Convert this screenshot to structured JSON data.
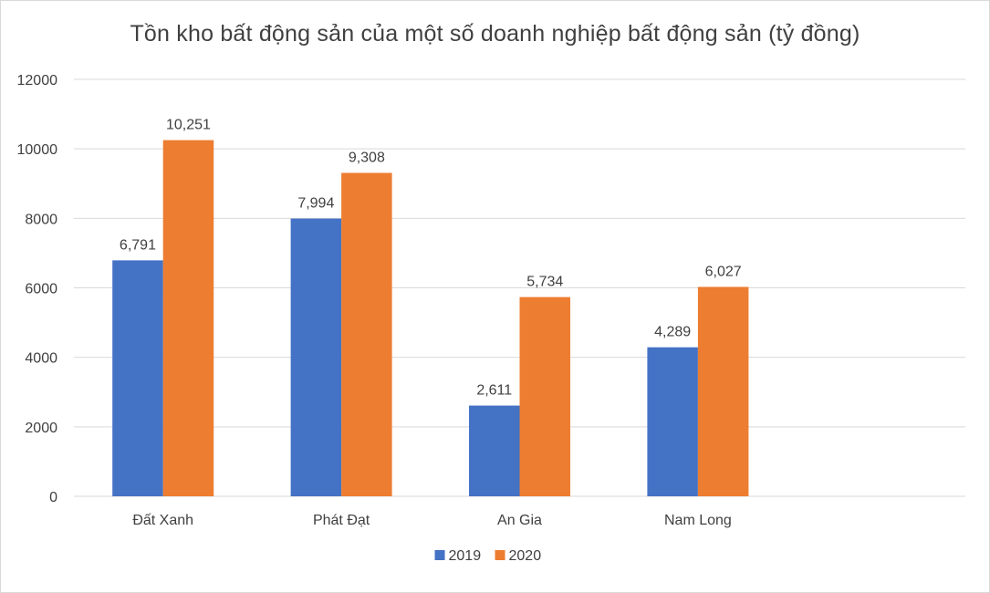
{
  "chart_data": {
    "type": "bar",
    "title": "Tồn kho bất động sản của một số doanh nghiệp bất động sản (tỷ đồng)",
    "categories": [
      "Đất Xanh",
      "Phát Đạt",
      "An Gia",
      "Nam Long"
    ],
    "series": [
      {
        "name": "2019",
        "values": [
          6791,
          7994,
          2611,
          4289
        ],
        "labels": [
          "6,791",
          "7,994",
          "2,611",
          "4,289"
        ],
        "color": "#4472c4"
      },
      {
        "name": "2020",
        "values": [
          10251,
          9308,
          5734,
          6027
        ],
        "labels": [
          "10,251",
          "9,308",
          "5,734",
          "6,027"
        ],
        "color": "#ed7d31"
      }
    ],
    "ylim": [
      0,
      12000
    ],
    "yticks": [
      0,
      2000,
      4000,
      6000,
      8000,
      10000,
      12000
    ],
    "ytick_labels": [
      "0",
      "2000",
      "4000",
      "6000",
      "8000",
      "10000",
      "12000"
    ],
    "xlabel": "",
    "ylabel": "",
    "grid": true,
    "legend_position": "bottom",
    "gridline_color": "#d9d9d9",
    "text_color": "#404040"
  }
}
